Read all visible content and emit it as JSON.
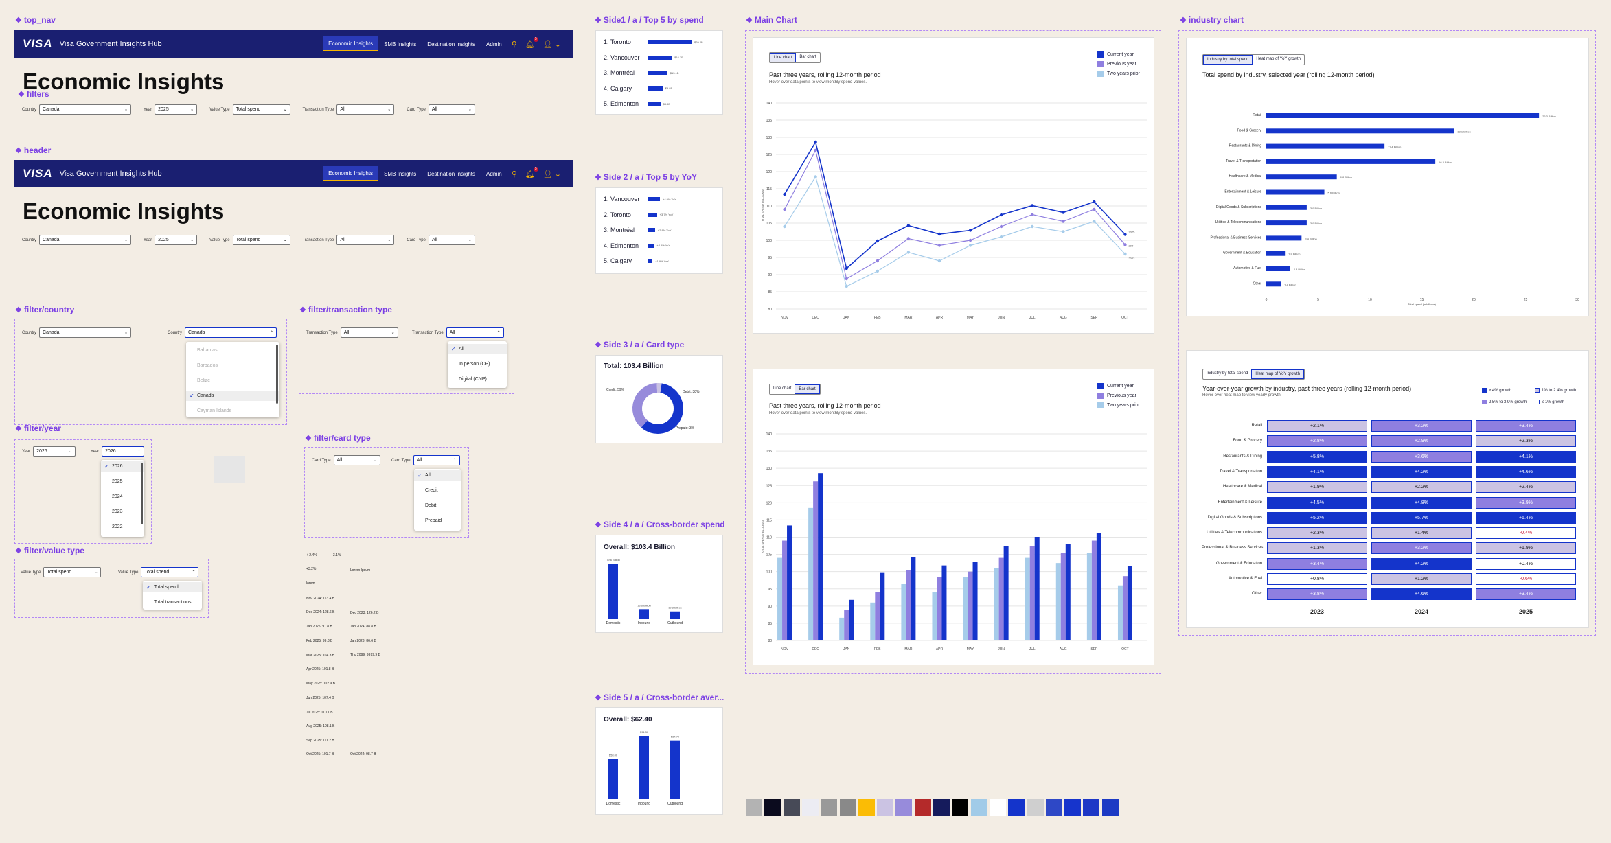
{
  "sections": {
    "top_nav": "top_nav",
    "filters": "filters",
    "header": "header",
    "filter_country": "filter/country",
    "filter_transaction": "filter/transaction type",
    "filter_year": "filter/year",
    "filter_card": "filter/card type",
    "filter_value": "filter/value type",
    "side1": "Side1 / a / Top 5 by spend",
    "side2": "Side 2 / a / Top 5 by YoY",
    "side3": "Side 3 / a / Card type",
    "side4": "Side 4 / a / Cross-border spend",
    "side5": "Side 5 / a / Cross-border aver...",
    "main_chart": "Main Chart",
    "industry_chart": "industry chart"
  },
  "nav": {
    "logo": "VISA",
    "brand": "Visa Government Insights Hub",
    "items": [
      "Economic Insights",
      "SMB Insights",
      "Destination Insights",
      "Admin"
    ],
    "badge": "5"
  },
  "page_title": "Economic Insights",
  "filters": {
    "country_label": "Country",
    "country": "Canada",
    "year_label": "Year",
    "year": "2025",
    "value_label": "Value Type",
    "value": "Total spend",
    "txn_label": "Transaction Type",
    "txn": "All",
    "card_label": "Card Type",
    "card": "All"
  },
  "dd": {
    "countries": [
      "Bahamas",
      "Barbados",
      "Belize",
      "Canada",
      "Cayman Islands"
    ],
    "txn": [
      "All",
      "In person (CP)",
      "Digital (CNP)"
    ],
    "years": [
      "2026",
      "2025",
      "2024",
      "2023",
      "2022"
    ],
    "year_sel": "2026",
    "cards": [
      "All",
      "Credit",
      "Debit",
      "Prepaid"
    ],
    "values": [
      "Total spend",
      "Total transactions"
    ]
  },
  "side1": {
    "items": [
      {
        "name": "1. Toronto",
        "value": "$29.4B",
        "pct": 1.0
      },
      {
        "name": "2. Vancouver",
        "value": "$16.2B",
        "pct": 0.55
      },
      {
        "name": "3. Montréal",
        "value": "$13.1B",
        "pct": 0.45
      },
      {
        "name": "4. Calgary",
        "value": "$9.8B",
        "pct": 0.34
      },
      {
        "name": "5. Edmonton",
        "value": "$8.6B",
        "pct": 0.29
      }
    ]
  },
  "side2": {
    "items": [
      {
        "name": "1. Vancouver",
        "value": "+4.9% YoY",
        "pct": 0.5
      },
      {
        "name": "2. Toronto",
        "value": "+3.7% YoY",
        "pct": 0.38
      },
      {
        "name": "3. Montréal",
        "value": "+2.8% YoY",
        "pct": 0.3
      },
      {
        "name": "4. Edmonton",
        "value": "+2.5% YoY",
        "pct": 0.26
      },
      {
        "name": "5. Calgary",
        "value": "+1.9% YoY",
        "pct": 0.2
      }
    ]
  },
  "side3": {
    "total": "Total: 103.4 Billion",
    "credit": "Credit: 59%",
    "debit": "Debit: 38%",
    "prepaid": "Prepaid: 3%"
  },
  "side4": {
    "overall": "Overall: $103.4 Billion",
    "bars": [
      {
        "label": "Domestic",
        "value": "79.6 Billion",
        "v": 79.6
      },
      {
        "label": "Inbound",
        "value": "13.6 Billion",
        "v": 13.6
      },
      {
        "label": "Outbound",
        "value": "10.2 Billion",
        "v": 10.2
      }
    ]
  },
  "side5": {
    "overall": "Overall: $62.40",
    "bars": [
      {
        "label": "Domestic",
        "value": "$58.00",
        "v": 58
      },
      {
        "label": "Inbound",
        "value": "$91.30",
        "v": 91.3
      },
      {
        "label": "Outbound",
        "value": "$84.70",
        "v": 84.7
      }
    ]
  },
  "tooltips": {
    "left": [
      "+ 2.4%",
      "+3.2%",
      "lorem",
      "Nov 2024: 113.4 B",
      "Dec 2024: 128.6 B",
      "Jan 2025: 91.8 B",
      "Feb 2025: 99.8 B",
      "Mar 2025: 104.3 B",
      "Apr 2025: 101.8 B",
      "May 2025: 102.9 B",
      "Jun 2025: 107.4 B",
      "Jul 2025: 110.1 B",
      "Aug 2025: 108.1 B",
      "Sep 2025: 111.2 B",
      "Oct 2025: 101.7 B"
    ],
    "right": [
      "+3.1%",
      "Lorem Ipsum",
      "Dec 2023: 126.2 B",
      "Jan 2024: 88.8 B",
      "Jan 2023: 86.6 B",
      "Thu 2099: 9999.9 B",
      "Oct 2024: 98.7 B"
    ]
  },
  "main": {
    "toggle": [
      "Line chart",
      "Bar chart"
    ],
    "title": "Past three years, rolling 12-month period",
    "subtitle": "Hover over data points to view monthly spend values.",
    "legend": [
      "Current year",
      "Previous year",
      "Two years prior"
    ],
    "ylabel": "TOTAL SPEND (BILLIONS)",
    "end_labels": [
      "2025",
      "2024",
      "2023"
    ]
  },
  "chart_data": [
    {
      "type": "line",
      "categories": [
        "NOV",
        "DEC",
        "JAN",
        "FEB",
        "MAR",
        "APR",
        "MAY",
        "JUN",
        "JUL",
        "AUG",
        "SEP",
        "OCT"
      ],
      "ylim": [
        80,
        140
      ],
      "yticks": [
        80,
        85,
        90,
        95,
        100,
        105,
        110,
        115,
        120,
        125,
        130,
        135,
        140
      ],
      "series": [
        {
          "name": "Current year",
          "values": [
            113.4,
            128.6,
            91.8,
            99.8,
            104.3,
            101.8,
            102.9,
            107.4,
            110.1,
            108.1,
            111.2,
            101.7
          ]
        },
        {
          "name": "Previous year",
          "values": [
            109,
            126.2,
            88.8,
            94,
            100.5,
            98.5,
            100,
            104,
            107.5,
            105.5,
            109,
            98.7
          ]
        },
        {
          "name": "Two years prior",
          "values": [
            104,
            118.5,
            86.6,
            91,
            96.5,
            94,
            98.5,
            101,
            104,
            102.5,
            105.5,
            96
          ]
        }
      ]
    },
    {
      "type": "bar",
      "categories": [
        "NOV",
        "DEC",
        "JAN",
        "FEB",
        "MAR",
        "APR",
        "MAY",
        "JUN",
        "JUL",
        "AUG",
        "SEP",
        "OCT"
      ],
      "ylim": [
        80,
        140
      ],
      "yticks": [
        80,
        85,
        90,
        95,
        100,
        105,
        110,
        115,
        120,
        125,
        130,
        135,
        140
      ],
      "series": [
        {
          "name": "Current year",
          "values": [
            113.4,
            128.6,
            91.8,
            99.8,
            104.3,
            101.8,
            102.9,
            107.4,
            110.1,
            108.1,
            111.2,
            101.7
          ]
        },
        {
          "name": "Previous year",
          "values": [
            109,
            126.2,
            88.8,
            94,
            100.5,
            98.5,
            100,
            104,
            107.5,
            105.5,
            109,
            98.7
          ]
        },
        {
          "name": "Two years prior",
          "values": [
            104,
            118.5,
            86.6,
            91,
            96.5,
            94,
            98.5,
            101,
            104,
            102.5,
            105.5,
            96
          ]
        }
      ]
    },
    {
      "type": "bar",
      "orientation": "horizontal",
      "categories": [
        "Retail",
        "Food & Grocery",
        "Restaurants & Dining",
        "Travel & Transportation",
        "Healthcare & Medical",
        "Entertainment & Leisure",
        "Digital Goods & Subscriptions",
        "Utilities & Telecommunications",
        "Professional & Business Services",
        "Government & Education",
        "Automotive & Fuel",
        "Other"
      ],
      "values": [
        26.3,
        18.1,
        11.4,
        16.3,
        6.8,
        5.6,
        3.9,
        3.9,
        3.4,
        1.8,
        2.3,
        1.4
      ],
      "value_labels": [
        "26.3 Billion",
        "18.1 Billion",
        "11.4 Billion",
        "16.3 Billion",
        "6.8 Billion",
        "5.6 Billion",
        "3.9 Billion",
        "3.9 Billion",
        "3.4 Billion",
        "1.8 Billion",
        "2.3 Billion",
        "1.4 Billion"
      ],
      "xlim": [
        0,
        30
      ],
      "xticks": [
        0,
        5,
        10,
        15,
        20,
        25,
        30
      ],
      "xlabel": "Total spend (in billions)"
    },
    {
      "type": "heatmap",
      "columns": [
        "2023",
        "2024",
        "2025"
      ],
      "rows": [
        "Retail",
        "Food & Grocery",
        "Restaurants & Dining",
        "Travel & Transportation",
        "Healthcare & Medical",
        "Entertainment & Leisure",
        "Digital Goods & Subscriptions",
        "Utilities & Telecommunications",
        "Professional & Business Services",
        "Government & Education",
        "Automotive & Fuel",
        "Other"
      ],
      "values": [
        [
          "+2.1%",
          "+3.2%",
          "+3.4%"
        ],
        [
          "+2.8%",
          "+2.9%",
          "+2.3%"
        ],
        [
          "+5.8%",
          "+3.6%",
          "+4.1%"
        ],
        [
          "+4.1%",
          "+4.2%",
          "+4.6%"
        ],
        [
          "+1.9%",
          "+2.2%",
          "+2.4%"
        ],
        [
          "+4.5%",
          "+4.8%",
          "+3.9%"
        ],
        [
          "+5.2%",
          "+5.7%",
          "+6.4%"
        ],
        [
          "+2.3%",
          "+1.4%",
          "-0.4%"
        ],
        [
          "+1.3%",
          "+3.2%",
          "+1.9%"
        ],
        [
          "+3.4%",
          "+4.2%",
          "+0.4%"
        ],
        [
          "+0.8%",
          "+1.2%",
          "-0.6%"
        ],
        [
          "+3.8%",
          "+4.6%",
          "+3.4%"
        ]
      ]
    }
  ],
  "industry": {
    "toggle": [
      "Industry by total spend",
      "Heat map of YoY growth"
    ],
    "title": "Total spend by industry, selected year (rolling 12-month period)",
    "heat_title": "Year-over-year growth by industry, past three years (rolling 12-month period)",
    "heat_sub": "Hover over heat map to view yearly growth.",
    "heat_legend": [
      "≥ 4% growth",
      "1% to 2.4% growth",
      "2.5% to 3.9% growth",
      "≤ 1% growth"
    ]
  },
  "colors": {
    "current": "#1434cb",
    "previous": "#8f7fe0",
    "prior": "#a6ccea",
    "navy": "#1a1f71",
    "gold": "#f7b600"
  },
  "swatches": [
    "#b3b3b3",
    "#0b0b1e",
    "#474a57",
    "#ececf3",
    "#999999",
    "#898989",
    "#fbbc05",
    "#cbc3e3",
    "#978bdb",
    "#b42a2a",
    "#151b5c",
    "#000000",
    "#a1cbe8",
    "#ffffff",
    "#1434cb",
    "#cfcfcf",
    "#2e48c6",
    "#1634cc",
    "#1d37c6",
    "#1c3ac4"
  ]
}
